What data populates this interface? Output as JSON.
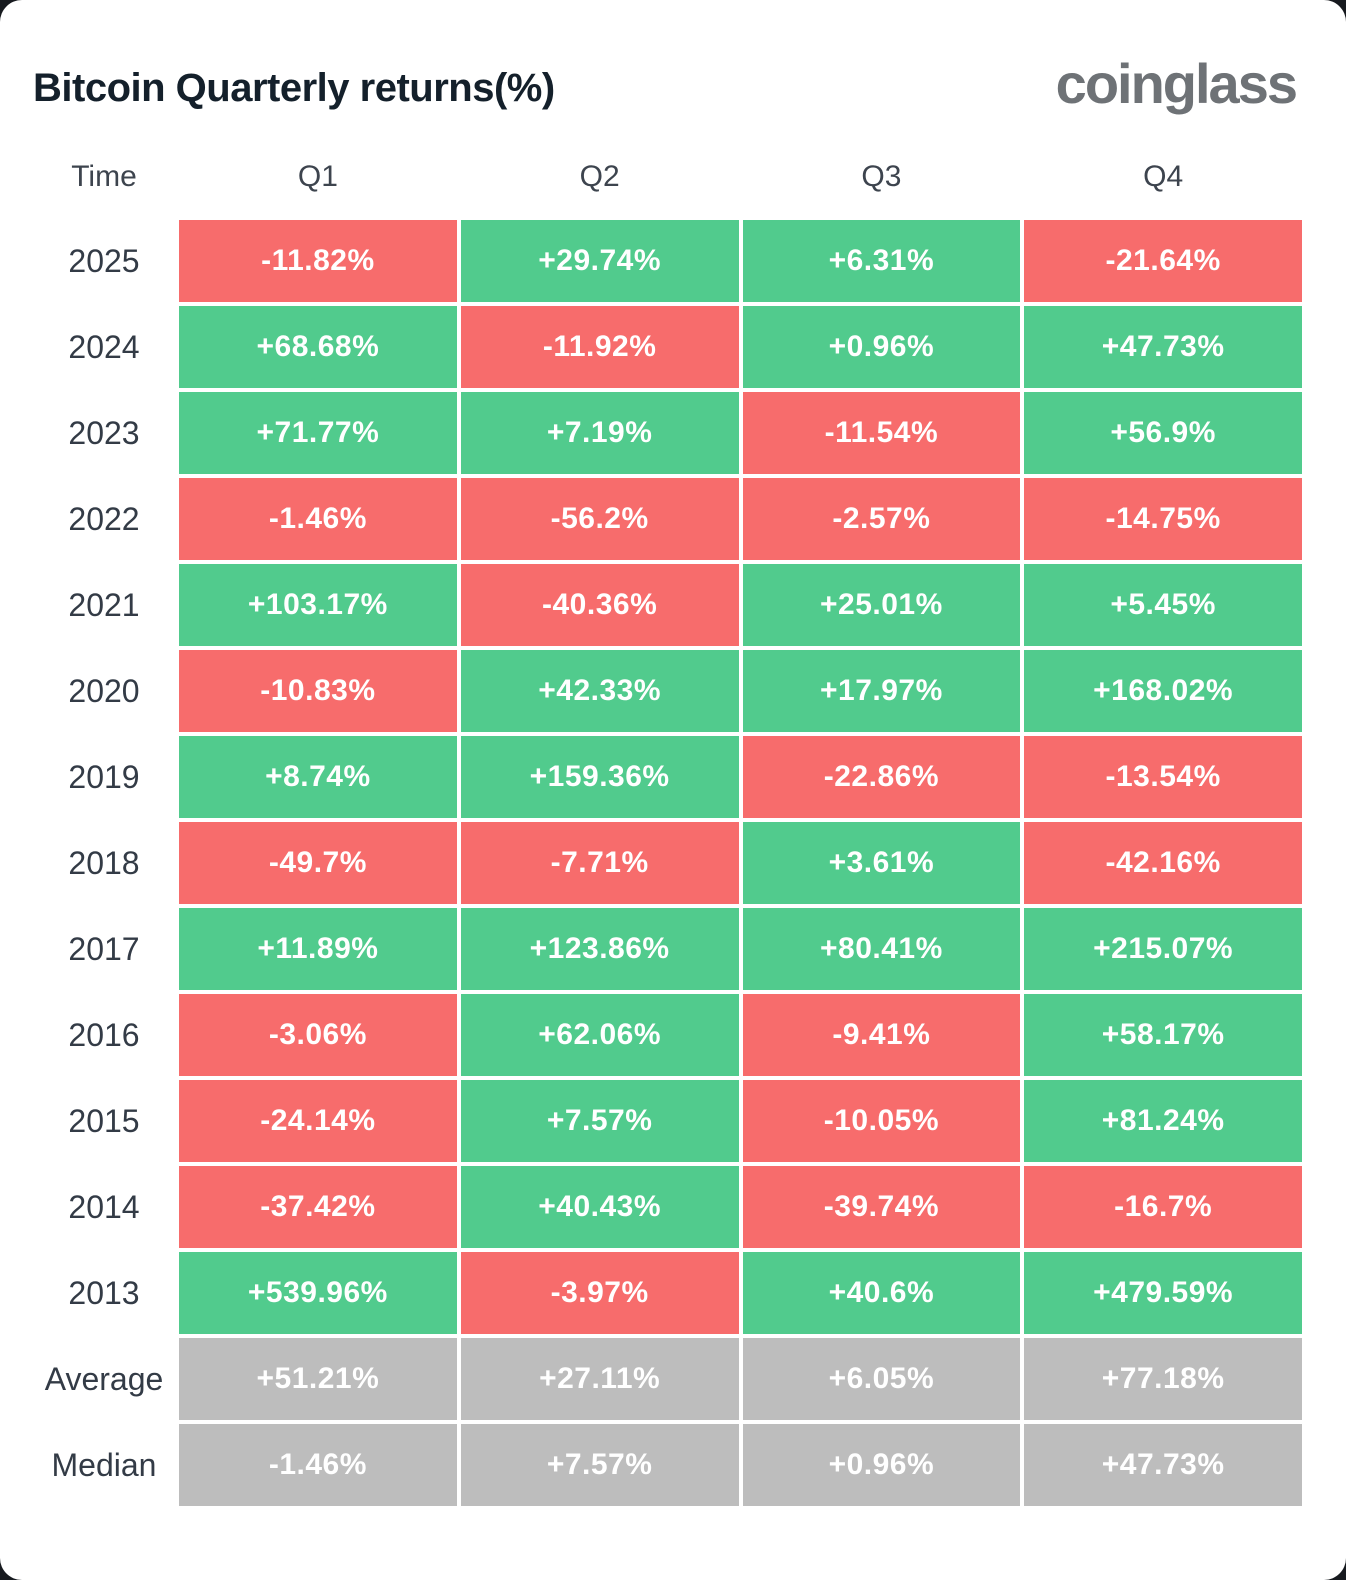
{
  "header": {
    "title": "Bitcoin Quarterly returns(%)",
    "logo_text": "coinglass"
  },
  "colors": {
    "positive": "#51cb8d",
    "negative": "#f76c6c",
    "neutral": "#bdbdbd",
    "logo": "#6e7276"
  },
  "chart_data": {
    "type": "table",
    "title": "Bitcoin Quarterly returns(%)",
    "columns": [
      "Time",
      "Q1",
      "Q2",
      "Q3",
      "Q4"
    ],
    "rows": [
      {
        "label": "2025",
        "kind": "year",
        "values": [
          "-11.82%",
          "+29.74%",
          "+6.31%",
          "-21.64%"
        ]
      },
      {
        "label": "2024",
        "kind": "year",
        "values": [
          "+68.68%",
          "-11.92%",
          "+0.96%",
          "+47.73%"
        ]
      },
      {
        "label": "2023",
        "kind": "year",
        "values": [
          "+71.77%",
          "+7.19%",
          "-11.54%",
          "+56.9%"
        ]
      },
      {
        "label": "2022",
        "kind": "year",
        "values": [
          "-1.46%",
          "-56.2%",
          "-2.57%",
          "-14.75%"
        ]
      },
      {
        "label": "2021",
        "kind": "year",
        "values": [
          "+103.17%",
          "-40.36%",
          "+25.01%",
          "+5.45%"
        ]
      },
      {
        "label": "2020",
        "kind": "year",
        "values": [
          "-10.83%",
          "+42.33%",
          "+17.97%",
          "+168.02%"
        ]
      },
      {
        "label": "2019",
        "kind": "year",
        "values": [
          "+8.74%",
          "+159.36%",
          "-22.86%",
          "-13.54%"
        ]
      },
      {
        "label": "2018",
        "kind": "year",
        "values": [
          "-49.7%",
          "-7.71%",
          "+3.61%",
          "-42.16%"
        ]
      },
      {
        "label": "2017",
        "kind": "year",
        "values": [
          "+11.89%",
          "+123.86%",
          "+80.41%",
          "+215.07%"
        ]
      },
      {
        "label": "2016",
        "kind": "year",
        "values": [
          "-3.06%",
          "+62.06%",
          "-9.41%",
          "+58.17%"
        ]
      },
      {
        "label": "2015",
        "kind": "year",
        "values": [
          "-24.14%",
          "+7.57%",
          "-10.05%",
          "+81.24%"
        ]
      },
      {
        "label": "2014",
        "kind": "year",
        "values": [
          "-37.42%",
          "+40.43%",
          "-39.74%",
          "-16.7%"
        ]
      },
      {
        "label": "2013",
        "kind": "year",
        "values": [
          "+539.96%",
          "-3.97%",
          "+40.6%",
          "+479.59%"
        ]
      },
      {
        "label": "Average",
        "kind": "summary",
        "values": [
          "+51.21%",
          "+27.11%",
          "+6.05%",
          "+77.18%"
        ]
      },
      {
        "label": "Median",
        "kind": "summary",
        "values": [
          "-1.46%",
          "+7.57%",
          "+0.96%",
          "+47.73%"
        ]
      }
    ]
  }
}
